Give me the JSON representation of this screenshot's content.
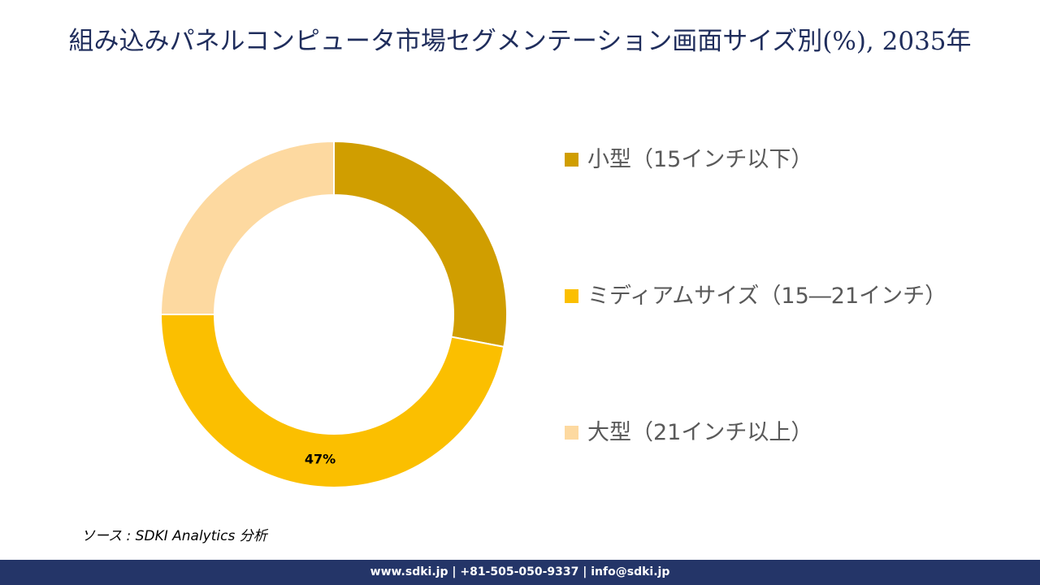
{
  "chart_data": {
    "type": "donut",
    "title": "組み込みパネルコンピュータ市場セグメンテーション画面サイズ別(%), 2035年",
    "categories": [
      "小型（15インチ以下）",
      "ミディアムサイズ（15―21インチ）",
      "大型（21インチ以上）"
    ],
    "values": [
      28,
      47,
      25
    ],
    "value_labels": [
      null,
      "47%",
      null
    ],
    "colors": [
      "#d09e00",
      "#fbbf00",
      "#fdd9a0"
    ],
    "source": "ソース : SDKI Analytics 分析",
    "footer": "www.sdki.jp | +81-505-050-9337 | info@sdki.jp"
  }
}
